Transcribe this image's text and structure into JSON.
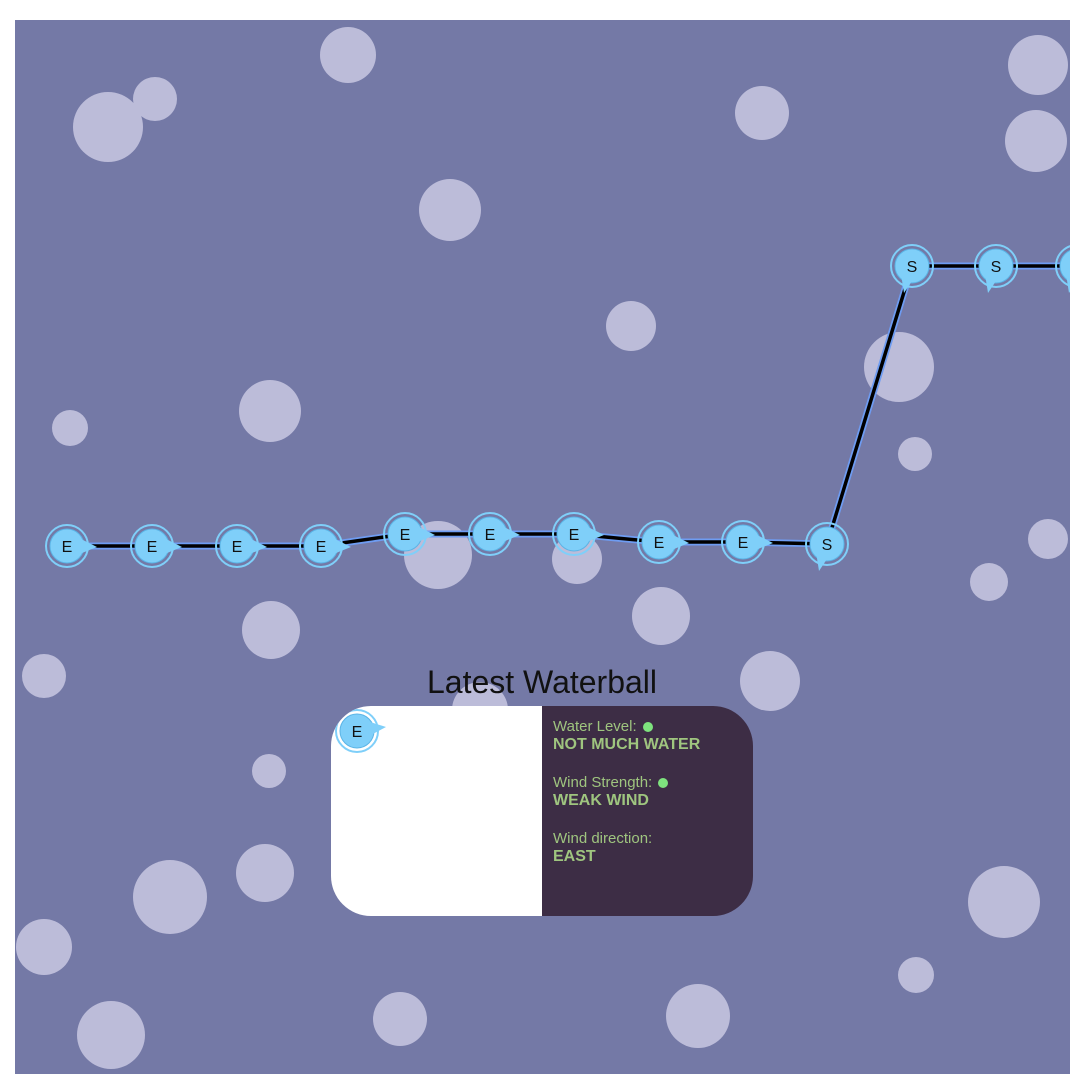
{
  "panel": {
    "title": "Latest Waterball",
    "latest_ball_label": "E",
    "water_level_label": "Water Level:",
    "water_level_value": "NOT MUCH WATER",
    "water_level_status_color": "#7ee37e",
    "wind_strength_label": "Wind Strength:",
    "wind_strength_value": "WEAK WIND",
    "wind_strength_status_color": "#7ee37e",
    "wind_direction_label": "Wind direction:",
    "wind_direction_value": "EAST"
  },
  "path": {
    "balls": [
      {
        "label": "E",
        "direction": "east"
      },
      {
        "label": "E",
        "direction": "east"
      },
      {
        "label": "E",
        "direction": "east"
      },
      {
        "label": "E",
        "direction": "east"
      },
      {
        "label": "E",
        "direction": "east"
      },
      {
        "label": "E",
        "direction": "east"
      },
      {
        "label": "E",
        "direction": "east"
      },
      {
        "label": "E",
        "direction": "east"
      },
      {
        "label": "E",
        "direction": "east"
      },
      {
        "label": "S",
        "direction": "south"
      },
      {
        "label": "S",
        "direction": "south"
      },
      {
        "label": "S",
        "direction": "south"
      },
      {
        "label": "S",
        "direction": "south"
      }
    ]
  },
  "colors": {
    "background": "#7479a6",
    "bubble": "#bcbcd9",
    "ball_fill": "#7fcff9",
    "ball_ring": "#7fcff9",
    "path_line": "#000000",
    "path_glow": "#6e9cf2",
    "card_left": "#ffffff",
    "card_right": "#3d2d45",
    "card_text": "#9fc57f"
  }
}
